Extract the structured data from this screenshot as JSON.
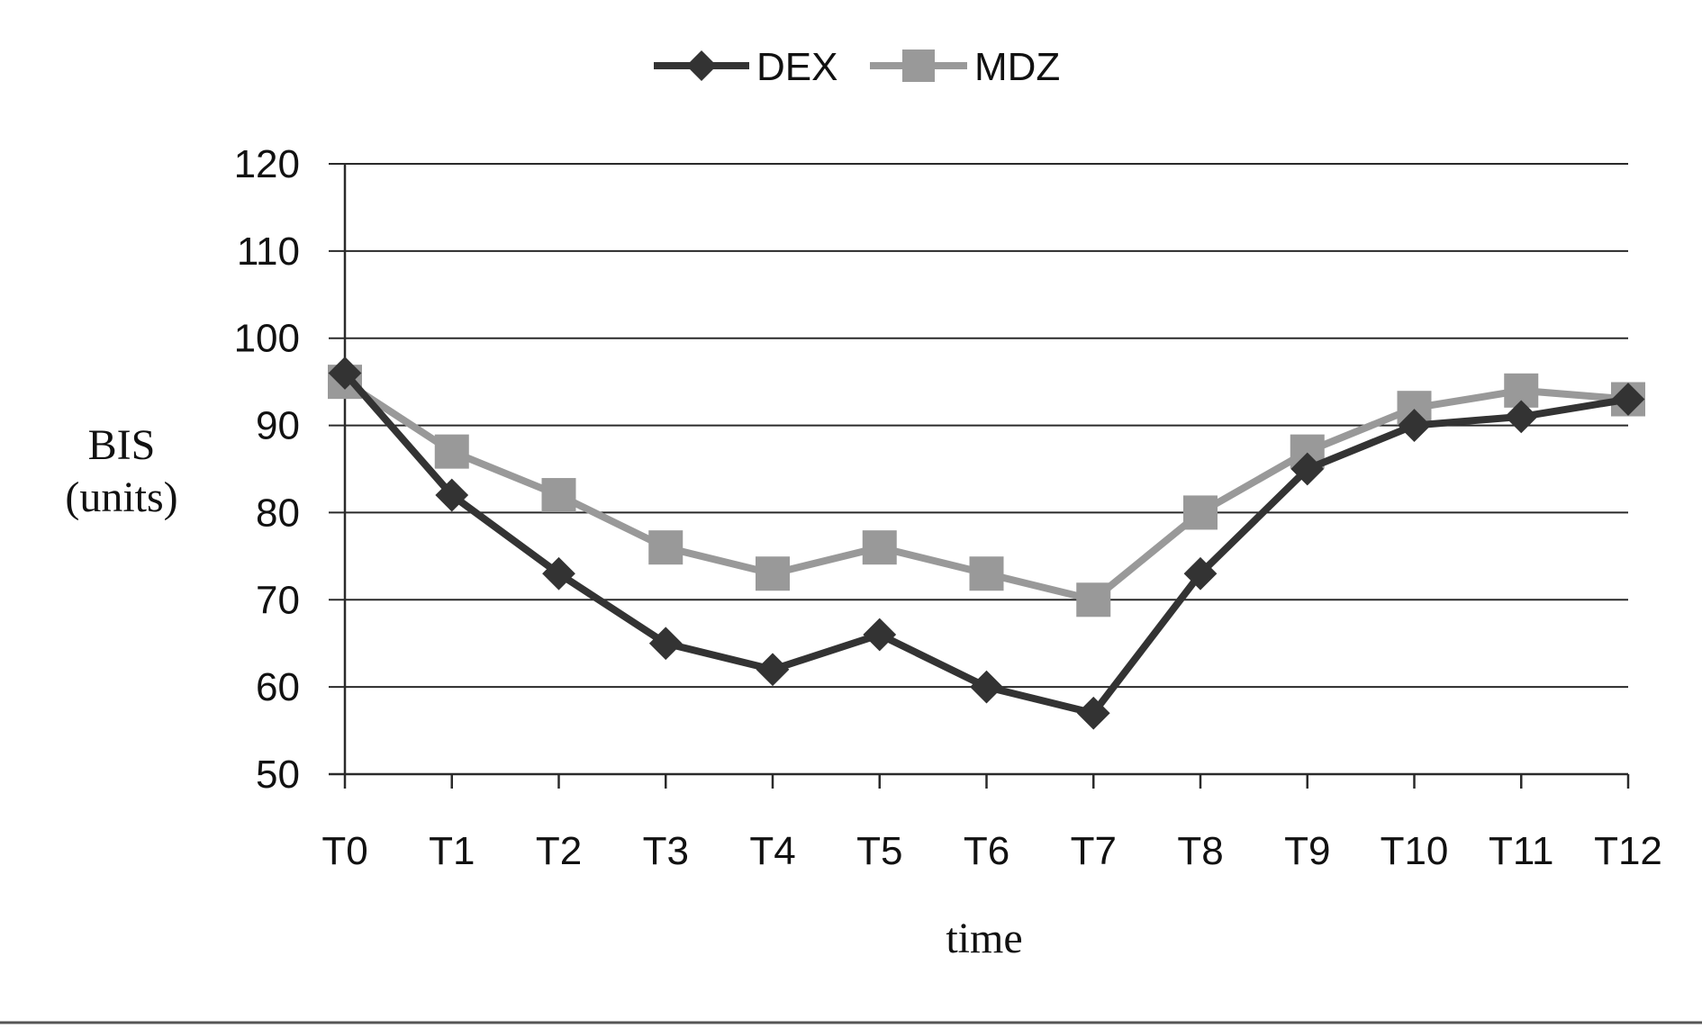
{
  "chart_data": {
    "type": "line",
    "title": "",
    "xlabel": "time",
    "ylabel_line1": "BIS",
    "ylabel_line2": "(units)",
    "categories": [
      "T0",
      "T1",
      "T2",
      "T3",
      "T4",
      "T5",
      "T6",
      "T7",
      "T8",
      "T9",
      "T10",
      "T11",
      "T12"
    ],
    "series": [
      {
        "name": "DEX",
        "marker": "diamond",
        "color": "#333333",
        "values": [
          96,
          82,
          73,
          65,
          62,
          66,
          60,
          57,
          73,
          85,
          90,
          91,
          93
        ]
      },
      {
        "name": "MDZ",
        "marker": "square",
        "color": "#999999",
        "values": [
          95,
          87,
          82,
          76,
          73,
          76,
          73,
          70,
          80,
          87,
          92,
          94,
          93
        ]
      }
    ],
    "yticks": [
      50,
      60,
      70,
      80,
      90,
      100,
      110,
      120
    ],
    "ylim": [
      50,
      120
    ],
    "grid": true,
    "legend_position": "top-center"
  }
}
